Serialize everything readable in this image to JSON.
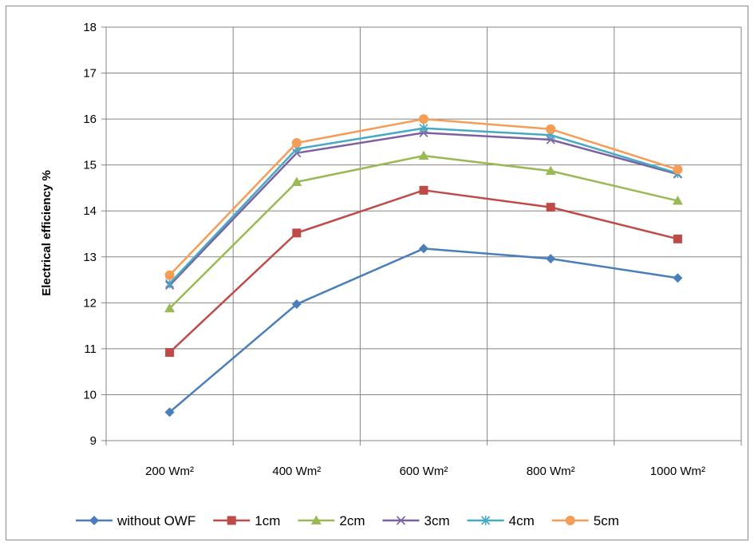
{
  "chart_data": {
    "type": "line",
    "ylabel": "Electrical efficiency %",
    "xlabel": "",
    "ylim": [
      9,
      18
    ],
    "yticks": [
      "9",
      "10",
      "11",
      "12",
      "13",
      "14",
      "15",
      "16",
      "17",
      "18"
    ],
    "categories": [
      "200 Wm²",
      "400 Wm²",
      "600 Wm²",
      "800 Wm²",
      "1000 Wm²"
    ],
    "grid": true,
    "legend_position": "bottom",
    "series": [
      {
        "name": "without OWF",
        "color": "#4a7ebb",
        "marker": "diamond",
        "values": [
          9.62,
          11.97,
          13.18,
          12.96,
          12.54
        ]
      },
      {
        "name": "1cm",
        "color": "#be4b48",
        "marker": "square",
        "values": [
          10.92,
          13.52,
          14.45,
          14.08,
          13.39
        ]
      },
      {
        "name": "2cm",
        "color": "#98b954",
        "marker": "triangle",
        "values": [
          11.88,
          14.63,
          15.2,
          14.87,
          14.22
        ]
      },
      {
        "name": "3cm",
        "color": "#7d60a0",
        "marker": "x",
        "values": [
          12.38,
          15.26,
          15.7,
          15.55,
          14.8
        ]
      },
      {
        "name": "4cm",
        "color": "#46aac5",
        "marker": "star",
        "values": [
          12.42,
          15.35,
          15.8,
          15.65,
          14.82
        ]
      },
      {
        "name": "5cm",
        "color": "#f59d56",
        "marker": "circle",
        "values": [
          12.6,
          15.48,
          16.0,
          15.78,
          14.9
        ]
      }
    ]
  }
}
